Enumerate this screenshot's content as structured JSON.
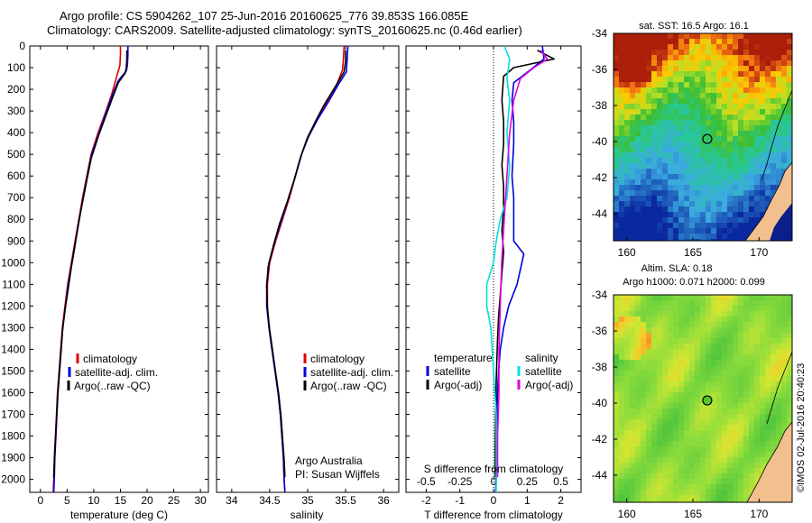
{
  "header": {
    "line1": "Argo profile: CS 5904262_107 25-Jun-2016 20160625_776 39.853S 166.085E",
    "line2": "Climatology: CARS2009. Satellite-adjusted climatology: synTS_20160625.nc (0.46d earlier)"
  },
  "colors": {
    "red": "#e00000",
    "blue": "#0000dd",
    "black": "#000000",
    "cyan": "#00e0e0",
    "magenta": "#e000e0",
    "land": "#f2bf8e"
  },
  "depth_ticks": [
    "0",
    "100",
    "200",
    "300",
    "400",
    "500",
    "600",
    "700",
    "800",
    "900",
    "1000",
    "1100",
    "1200",
    "1300",
    "1400",
    "1500",
    "1600",
    "1700",
    "1800",
    "1900",
    "2000"
  ],
  "chart_data": [
    {
      "type": "line",
      "panel": "temperature",
      "xlabel": "temperature (deg C)",
      "ylabel": "",
      "xlim": [
        -2,
        31.5
      ],
      "ylim": [
        2060,
        0
      ],
      "xticks": [
        "0",
        "5",
        "10",
        "15",
        "20",
        "25",
        "30"
      ],
      "legend": [
        "climatology",
        "satellite-adj. clim.",
        "Argo(..raw -QC)"
      ],
      "series": [
        {
          "name": "climatology",
          "color": "red",
          "points": [
            [
              15.0,
              0
            ],
            [
              15.0,
              40
            ],
            [
              14.9,
              90
            ],
            [
              14.2,
              150
            ],
            [
              13.4,
              220
            ],
            [
              12.3,
              300
            ],
            [
              10.8,
              400
            ],
            [
              9.5,
              500
            ],
            [
              8.7,
              600
            ],
            [
              7.9,
              700
            ],
            [
              7.2,
              800
            ],
            [
              6.5,
              900
            ],
            [
              5.8,
              1000
            ],
            [
              5.1,
              1100
            ],
            [
              4.6,
              1200
            ],
            [
              4.1,
              1300
            ],
            [
              3.8,
              1400
            ],
            [
              3.5,
              1500
            ],
            [
              3.2,
              1600
            ],
            [
              3.0,
              1700
            ],
            [
              2.8,
              1800
            ],
            [
              2.6,
              1900
            ],
            [
              2.5,
              2000
            ],
            [
              2.4,
              2060
            ]
          ]
        },
        {
          "name": "satellite-adj. clim.",
          "color": "blue",
          "points": [
            [
              16.4,
              0
            ],
            [
              16.4,
              40
            ],
            [
              16.3,
              90
            ],
            [
              16.1,
              115
            ],
            [
              14.6,
              160
            ],
            [
              13.6,
              220
            ],
            [
              12.4,
              300
            ],
            [
              11.0,
              400
            ],
            [
              9.6,
              500
            ],
            [
              8.8,
              600
            ],
            [
              8.0,
              700
            ],
            [
              7.3,
              800
            ],
            [
              6.6,
              900
            ],
            [
              5.9,
              1000
            ],
            [
              5.2,
              1100
            ],
            [
              4.7,
              1200
            ],
            [
              4.2,
              1300
            ],
            [
              3.9,
              1400
            ],
            [
              3.6,
              1500
            ],
            [
              3.3,
              1600
            ],
            [
              3.1,
              1700
            ],
            [
              2.9,
              1800
            ],
            [
              2.7,
              1900
            ],
            [
              2.6,
              2000
            ],
            [
              2.5,
              2060
            ]
          ]
        },
        {
          "name": "Argo(..raw -QC)",
          "color": "black",
          "points": [
            [
              16.2,
              20
            ],
            [
              16.2,
              60
            ],
            [
              16.1,
              100
            ],
            [
              15.9,
              125
            ],
            [
              14.6,
              170
            ],
            [
              13.5,
              240
            ],
            [
              12.3,
              320
            ],
            [
              10.8,
              420
            ],
            [
              9.5,
              520
            ],
            [
              8.7,
              620
            ],
            [
              7.9,
              720
            ],
            [
              7.1,
              820
            ],
            [
              6.5,
              920
            ],
            [
              5.8,
              1020
            ],
            [
              5.2,
              1120
            ],
            [
              4.6,
              1220
            ],
            [
              4.1,
              1320
            ],
            [
              3.8,
              1420
            ],
            [
              3.5,
              1520
            ],
            [
              3.2,
              1620
            ],
            [
              3.0,
              1720
            ],
            [
              2.8,
              1820
            ],
            [
              2.6,
              1920
            ],
            [
              2.5,
              1990
            ]
          ]
        }
      ]
    },
    {
      "type": "line",
      "panel": "salinity",
      "xlabel": "salinity",
      "ylabel": "",
      "xlim": [
        33.8,
        36.2
      ],
      "ylim": [
        2060,
        0
      ],
      "xticks": [
        "34",
        "34.5",
        "35",
        "35.5",
        "36"
      ],
      "legend": [
        "climatology",
        "satellite-adj. clim.",
        "Argo(..raw -QC)"
      ],
      "annotation": [
        "Argo Australia",
        "PI: Susan Wijffels"
      ],
      "series": [
        {
          "name": "climatology",
          "color": "red",
          "points": [
            [
              35.48,
              0
            ],
            [
              35.47,
              60
            ],
            [
              35.46,
              110
            ],
            [
              35.38,
              180
            ],
            [
              35.25,
              260
            ],
            [
              35.12,
              340
            ],
            [
              35.0,
              420
            ],
            [
              34.92,
              500
            ],
            [
              34.84,
              600
            ],
            [
              34.76,
              700
            ],
            [
              34.67,
              800
            ],
            [
              34.58,
              900
            ],
            [
              34.5,
              1000
            ],
            [
              34.47,
              1100
            ],
            [
              34.47,
              1200
            ],
            [
              34.49,
              1300
            ],
            [
              34.53,
              1400
            ],
            [
              34.57,
              1500
            ],
            [
              34.61,
              1600
            ],
            [
              34.64,
              1700
            ],
            [
              34.66,
              1800
            ],
            [
              34.68,
              1900
            ],
            [
              34.69,
              2000
            ],
            [
              34.7,
              2060
            ]
          ]
        },
        {
          "name": "satellite-adj. clim.",
          "color": "blue",
          "points": [
            [
              35.53,
              0
            ],
            [
              35.52,
              60
            ],
            [
              35.51,
              120
            ],
            [
              35.4,
              180
            ],
            [
              35.27,
              260
            ],
            [
              35.13,
              340
            ],
            [
              35.01,
              420
            ],
            [
              34.92,
              500
            ],
            [
              34.84,
              600
            ],
            [
              34.75,
              700
            ],
            [
              34.66,
              800
            ],
            [
              34.57,
              900
            ],
            [
              34.49,
              1000
            ],
            [
              34.46,
              1100
            ],
            [
              34.46,
              1200
            ],
            [
              34.49,
              1300
            ],
            [
              34.53,
              1400
            ],
            [
              34.57,
              1500
            ],
            [
              34.61,
              1600
            ],
            [
              34.64,
              1700
            ],
            [
              34.66,
              1800
            ],
            [
              34.68,
              1900
            ],
            [
              34.69,
              2000
            ],
            [
              34.7,
              2060
            ]
          ]
        },
        {
          "name": "Argo(..raw -QC)",
          "color": "black",
          "points": [
            [
              35.5,
              20
            ],
            [
              35.5,
              70
            ],
            [
              35.48,
              120
            ],
            [
              35.36,
              190
            ],
            [
              35.22,
              270
            ],
            [
              35.1,
              350
            ],
            [
              34.99,
              430
            ],
            [
              34.9,
              520
            ],
            [
              34.82,
              620
            ],
            [
              34.73,
              720
            ],
            [
              34.63,
              820
            ],
            [
              34.55,
              920
            ],
            [
              34.48,
              1020
            ],
            [
              34.46,
              1110
            ],
            [
              34.47,
              1210
            ],
            [
              34.5,
              1310
            ],
            [
              34.54,
              1410
            ],
            [
              34.58,
              1510
            ],
            [
              34.62,
              1610
            ],
            [
              34.65,
              1710
            ],
            [
              34.67,
              1810
            ],
            [
              34.69,
              1910
            ],
            [
              34.7,
              1990
            ]
          ]
        }
      ]
    },
    {
      "type": "line",
      "panel": "difference",
      "xlabel": "T difference from climatology",
      "xlabel_top": "S difference from climatology",
      "ylabel": "",
      "xlim": [
        -2.6,
        2.6
      ],
      "ylim": [
        2060,
        0
      ],
      "xticks_T": [
        "-2",
        "-1",
        "0",
        "1",
        "2"
      ],
      "xticks_S": [
        "-0.5",
        "-0.25",
        "0",
        "0.25",
        "0.5"
      ],
      "legend_headers": [
        "temperature",
        "salinity"
      ],
      "legend": [
        "satellite",
        "Argo(-adj)",
        "satellite",
        "Argo(-adj)"
      ],
      "series": [
        {
          "name": "satellite",
          "group": "temperature",
          "color": "blue",
          "points": [
            [
              1.45,
              0
            ],
            [
              1.5,
              60
            ],
            [
              1.1,
              110
            ],
            [
              0.6,
              170
            ],
            [
              0.55,
              250
            ],
            [
              0.6,
              350
            ],
            [
              0.6,
              450
            ],
            [
              0.55,
              600
            ],
            [
              0.6,
              700
            ],
            [
              0.6,
              800
            ],
            [
              0.6,
              900
            ],
            [
              0.9,
              960
            ],
            [
              0.7,
              1100
            ],
            [
              0.45,
              1200
            ],
            [
              0.3,
              1300
            ],
            [
              0.2,
              1400
            ],
            [
              0.15,
              1500
            ],
            [
              0.12,
              1600
            ],
            [
              0.1,
              1700
            ],
            [
              0.1,
              1800
            ],
            [
              0.1,
              1900
            ],
            [
              0.08,
              2000
            ],
            [
              0.06,
              2060
            ]
          ]
        },
        {
          "name": "Argo(-adj)",
          "group": "temperature",
          "color": "black",
          "points": [
            [
              1.3,
              20
            ],
            [
              1.8,
              60
            ],
            [
              0.6,
              100
            ],
            [
              0.3,
              140
            ],
            [
              0.25,
              250
            ],
            [
              0.3,
              350
            ],
            [
              0.3,
              450
            ],
            [
              0.25,
              550
            ],
            [
              0.3,
              650
            ],
            [
              0.3,
              750
            ],
            [
              0.25,
              850
            ],
            [
              0.3,
              950
            ],
            [
              0.25,
              1050
            ],
            [
              0.2,
              1150
            ],
            [
              0.15,
              1250
            ],
            [
              0.12,
              1350
            ],
            [
              0.1,
              1450
            ],
            [
              0.08,
              1550
            ],
            [
              0.07,
              1650
            ],
            [
              0.06,
              1750
            ],
            [
              0.05,
              1850
            ],
            [
              0.05,
              1990
            ]
          ]
        },
        {
          "name": "satellite",
          "group": "salinity",
          "color": "cyan",
          "points": [
            [
              0.08,
              0
            ],
            [
              0.12,
              60
            ],
            [
              0.1,
              150
            ],
            [
              0.12,
              250
            ],
            [
              0.1,
              400
            ],
            [
              0.12,
              550
            ],
            [
              0.1,
              700
            ],
            [
              0.05,
              800
            ],
            [
              0.02,
              900
            ],
            [
              0.0,
              1000
            ],
            [
              -0.05,
              1100
            ],
            [
              -0.05,
              1200
            ],
            [
              -0.02,
              1300
            ],
            [
              0.0,
              1500
            ],
            [
              0.02,
              1700
            ],
            [
              0.02,
              2060
            ]
          ]
        },
        {
          "name": "Argo(-adj)",
          "group": "salinity",
          "color": "magenta",
          "points": [
            [
              0.35,
              20
            ],
            [
              0.4,
              60
            ],
            [
              0.3,
              100
            ],
            [
              0.2,
              150
            ],
            [
              0.15,
              250
            ],
            [
              0.12,
              400
            ],
            [
              0.1,
              600
            ],
            [
              0.08,
              800
            ],
            [
              0.06,
              1000
            ],
            [
              0.05,
              1200
            ],
            [
              0.04,
              1400
            ],
            [
              0.04,
              1600
            ],
            [
              0.03,
              1800
            ],
            [
              0.03,
              1990
            ]
          ]
        }
      ]
    },
    {
      "type": "heatmap",
      "panel": "map-sst",
      "title": "sat. SST: 16.5 Argo: 16.1",
      "xticks": [
        "160",
        "165",
        "170"
      ],
      "yticks": [
        "-34",
        "-36",
        "-38",
        "-40",
        "-42",
        "-44"
      ],
      "xlim": [
        159,
        172.5
      ],
      "ylim": [
        -45.5,
        -34
      ],
      "argo_position": [
        166.085,
        -39.853
      ]
    },
    {
      "type": "heatmap",
      "panel": "map-sla",
      "title_line1": "Altim. SLA: 0.18",
      "title_line2": "Argo h1000: 0.071 h2000: 0.099",
      "xticks": [
        "160",
        "165",
        "170"
      ],
      "yticks": [
        "-34",
        "-36",
        "-38",
        "-40",
        "-42",
        "-44"
      ],
      "xlim": [
        159,
        172.5
      ],
      "ylim": [
        -45.5,
        -34
      ],
      "argo_position": [
        166.085,
        -39.853
      ]
    }
  ],
  "credit": "©IMOS 02-Jul-2016 20:40:23"
}
